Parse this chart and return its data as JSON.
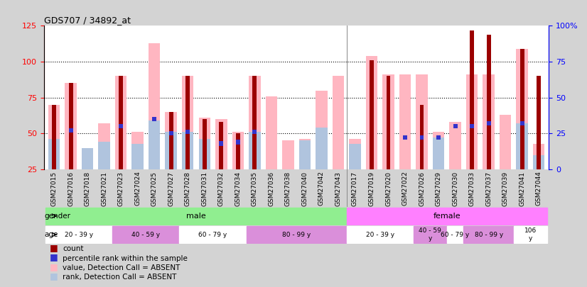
{
  "title": "GDS707 / 34892_at",
  "samples": [
    "GSM27015",
    "GSM27016",
    "GSM27018",
    "GSM27021",
    "GSM27023",
    "GSM27024",
    "GSM27025",
    "GSM27027",
    "GSM27028",
    "GSM27031",
    "GSM27032",
    "GSM27034",
    "GSM27035",
    "GSM27036",
    "GSM27038",
    "GSM27040",
    "GSM27042",
    "GSM27043",
    "GSM27017",
    "GSM27019",
    "GSM27020",
    "GSM27022",
    "GSM27026",
    "GSM27029",
    "GSM27030",
    "GSM27033",
    "GSM27037",
    "GSM27039",
    "GSM27041",
    "GSM27044"
  ],
  "count_values": [
    70,
    85,
    null,
    null,
    90,
    null,
    null,
    65,
    90,
    60,
    58,
    50,
    90,
    null,
    null,
    null,
    null,
    null,
    null,
    101,
    90,
    null,
    70,
    null,
    null,
    122,
    119,
    null,
    109,
    90
  ],
  "rank_values": [
    null,
    52,
    null,
    null,
    55,
    null,
    60,
    50,
    51,
    null,
    43,
    44,
    51,
    null,
    null,
    null,
    null,
    null,
    null,
    null,
    null,
    47,
    47,
    47,
    55,
    55,
    57,
    null,
    57,
    null
  ],
  "pink_values": [
    70,
    85,
    40,
    57,
    90,
    51,
    113,
    65,
    90,
    61,
    60,
    51,
    90,
    76,
    45,
    46,
    80,
    90,
    46,
    104,
    91,
    91,
    91,
    51,
    58,
    91,
    91,
    63,
    109,
    43
  ],
  "lightblue_values": [
    46,
    null,
    40,
    44,
    null,
    43,
    59,
    51,
    51,
    46,
    null,
    null,
    51,
    null,
    null,
    45,
    54,
    null,
    43,
    null,
    null,
    null,
    null,
    47,
    null,
    null,
    null,
    null,
    57,
    35
  ],
  "gender_groups": [
    {
      "label": "male",
      "start": 0,
      "end": 17,
      "color": "#90ee90"
    },
    {
      "label": "female",
      "start": 18,
      "end": 29,
      "color": "#ff80ff"
    }
  ],
  "age_groups": [
    {
      "label": "20 - 39 y",
      "start": 0,
      "end": 3,
      "color": "#ffffff"
    },
    {
      "label": "40 - 59 y",
      "start": 4,
      "end": 7,
      "color": "#da8fda"
    },
    {
      "label": "60 - 79 y",
      "start": 8,
      "end": 11,
      "color": "#ffffff"
    },
    {
      "label": "80 - 99 y",
      "start": 12,
      "end": 17,
      "color": "#da8fda"
    },
    {
      "label": "20 - 39 y",
      "start": 18,
      "end": 21,
      "color": "#ffffff"
    },
    {
      "label": "40 - 59\ny",
      "start": 22,
      "end": 23,
      "color": "#da8fda"
    },
    {
      "label": "60 - 79 y",
      "start": 24,
      "end": 24,
      "color": "#ffffff"
    },
    {
      "label": "80 - 99 y",
      "start": 25,
      "end": 27,
      "color": "#da8fda"
    },
    {
      "label": "106\ny",
      "start": 28,
      "end": 29,
      "color": "#ffffff"
    }
  ],
  "left_ylim": [
    25,
    125
  ],
  "right_ylim": [
    0,
    100
  ],
  "left_yticks": [
    25,
    50,
    75,
    100,
    125
  ],
  "right_yticks": [
    0,
    25,
    50,
    75,
    100
  ],
  "right_yticklabels": [
    "0",
    "25",
    "50",
    "75",
    "100%"
  ],
  "grid_values": [
    50,
    75,
    100
  ],
  "bar_color_dark_red": "#9b0000",
  "bar_color_pink": "#ffb6c1",
  "bar_color_blue": "#3333cc",
  "bar_color_lightblue": "#b0c4de",
  "legend_items": [
    {
      "color": "#9b0000",
      "label": "count"
    },
    {
      "color": "#3333cc",
      "label": "percentile rank within the sample"
    },
    {
      "color": "#ffb6c1",
      "label": "value, Detection Call = ABSENT"
    },
    {
      "color": "#b0c4de",
      "label": "rank, Detection Call = ABSENT"
    }
  ],
  "background_color": "#d3d3d3",
  "plot_bg_color": "#ffffff"
}
